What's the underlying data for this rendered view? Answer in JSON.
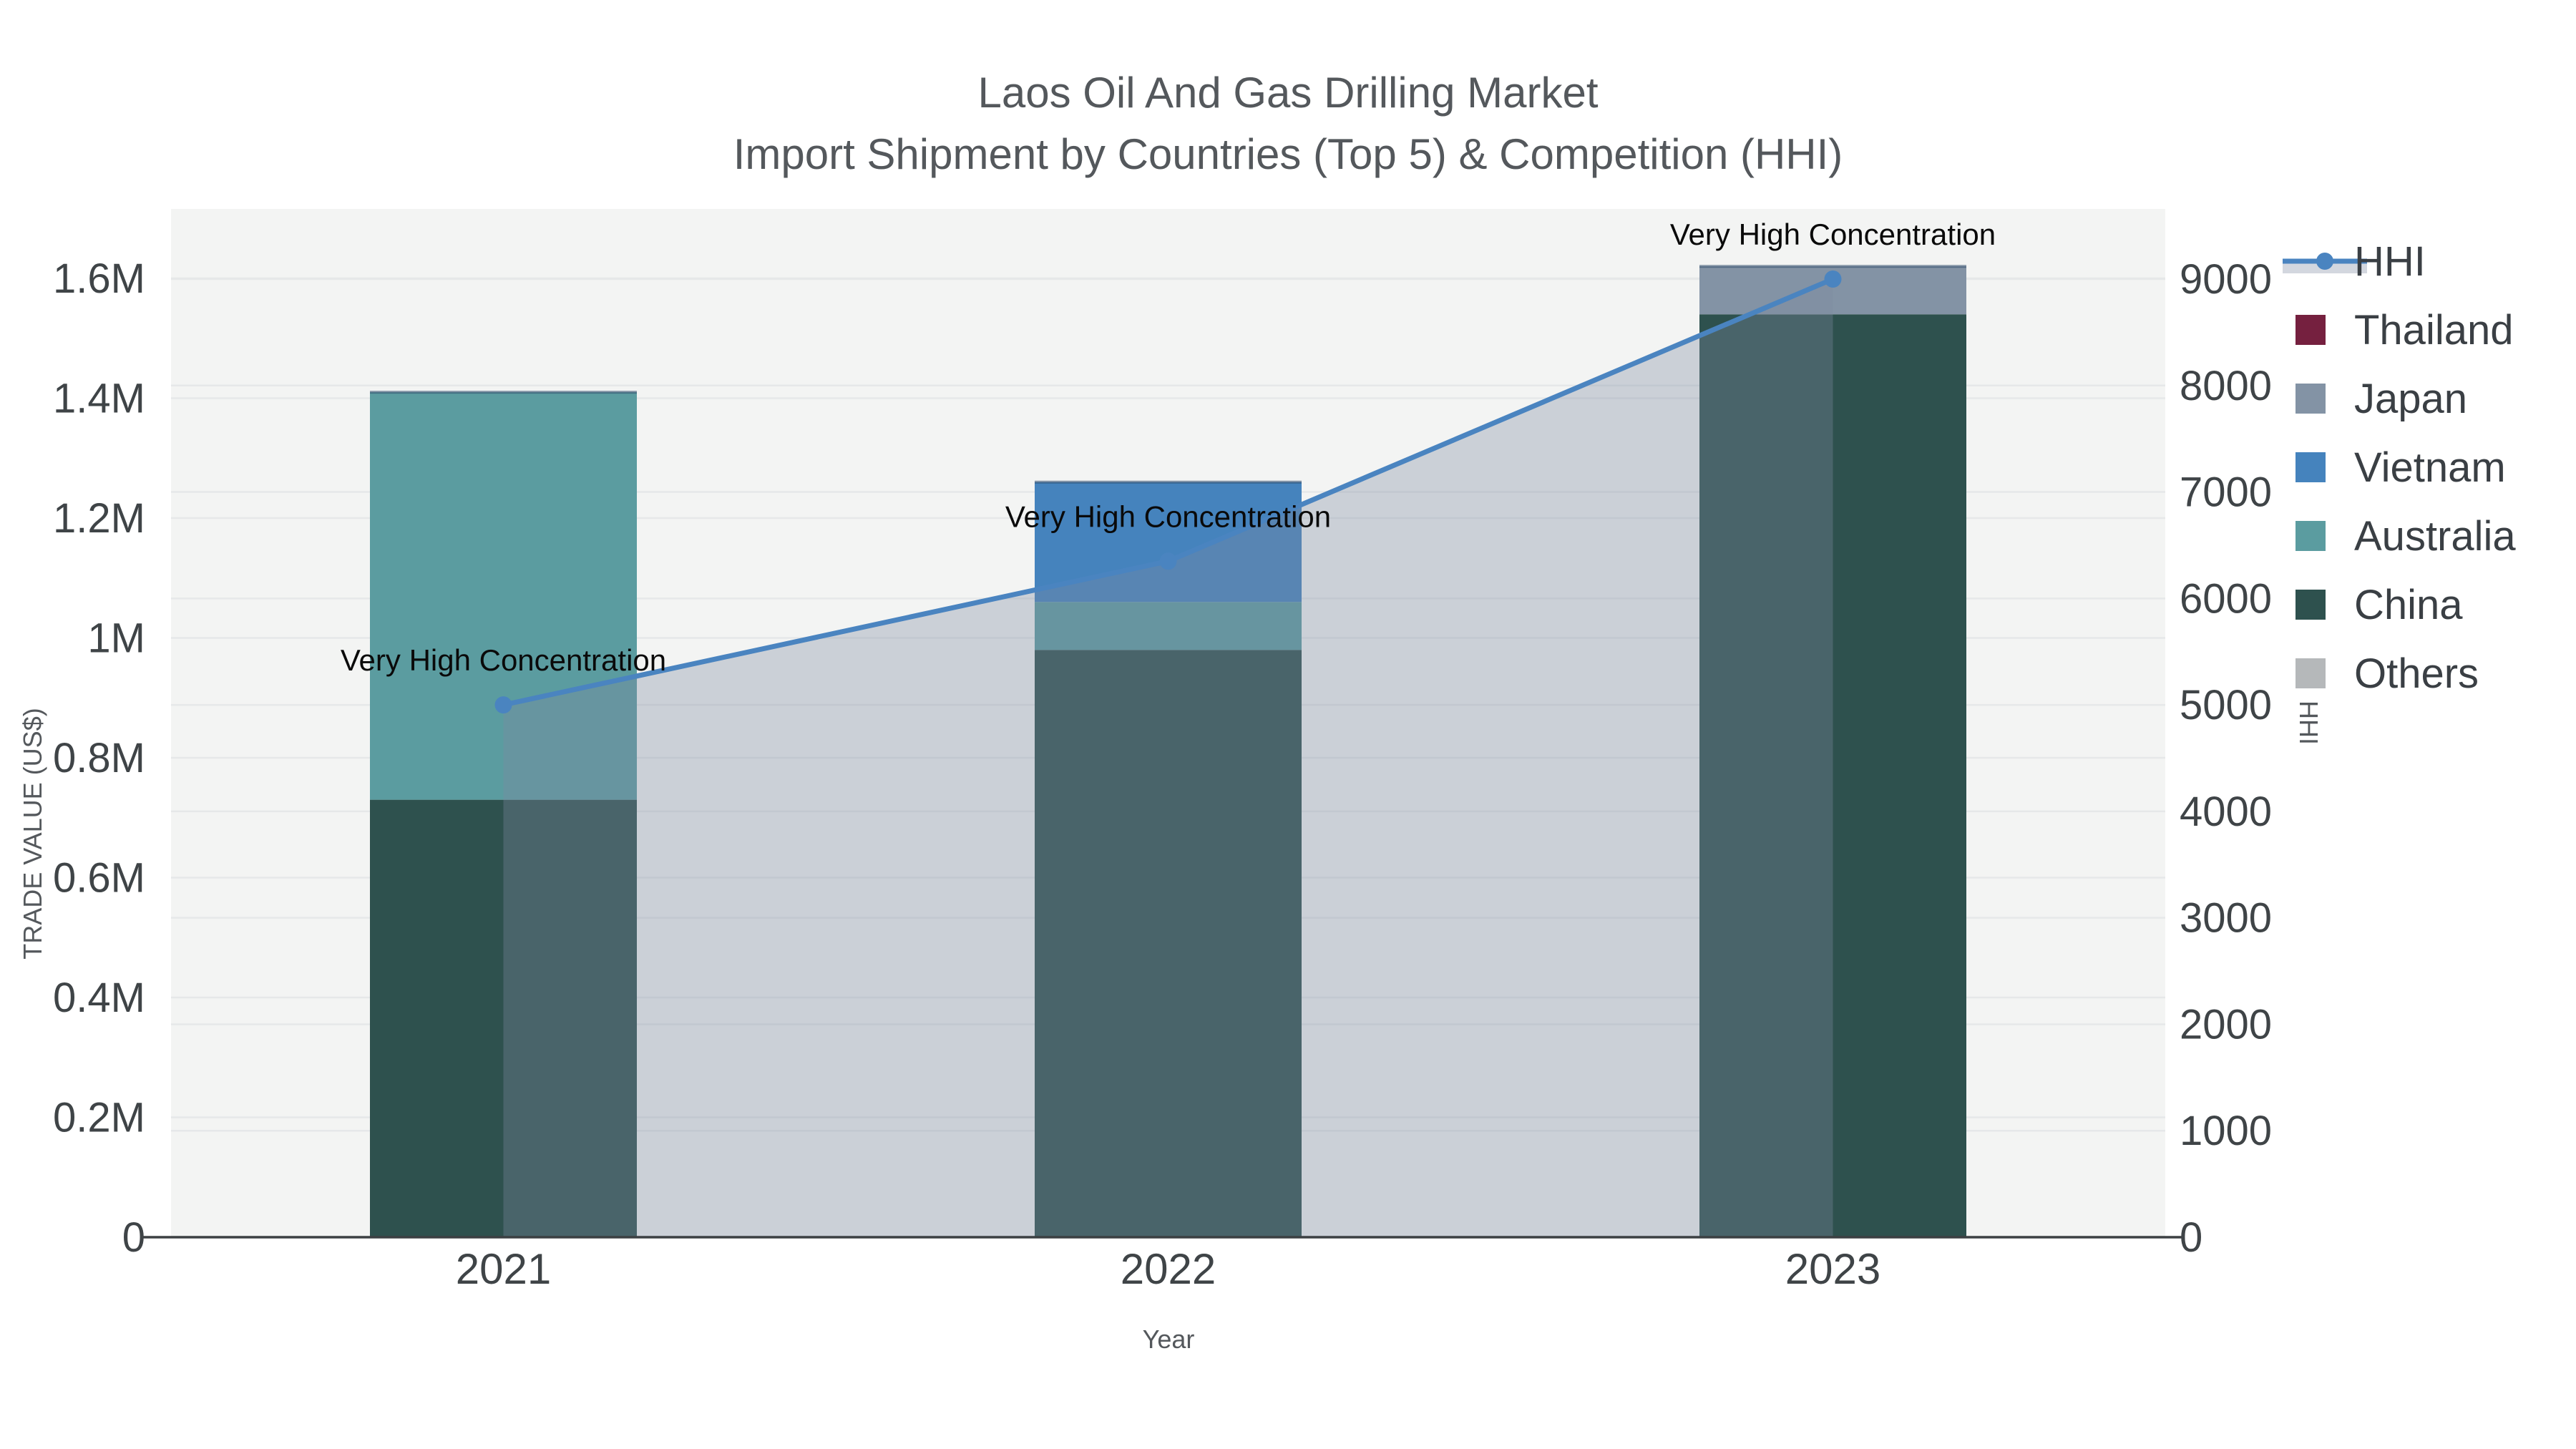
{
  "header": {
    "title": "Laos Oil And Gas Drilling Market",
    "subtitle": "Import Shipment by Countries (Top 5) & Competition (HHI)"
  },
  "chart_data": {
    "type": "bar+line",
    "title": "Laos Oil And Gas Drilling Market",
    "subtitle": "Import Shipment by Countries (Top 5) & Competition (HHI)",
    "categories": [
      "2021",
      "2022",
      "2023"
    ],
    "series": [
      {
        "name": "China",
        "color": "#2e514e",
        "values": [
          730000,
          980000,
          1540000
        ]
      },
      {
        "name": "Australia",
        "color": "#5b9ca0",
        "values": [
          680000,
          80000,
          0
        ]
      },
      {
        "name": "Vietnam",
        "color": "#4583bd",
        "values": [
          0,
          200000,
          0
        ]
      },
      {
        "name": "Japan",
        "color": "#8393a5",
        "values": [
          0,
          0,
          80000
        ]
      },
      {
        "name": "Thailand",
        "color": "#75203f",
        "values": [
          0,
          0,
          0
        ]
      },
      {
        "name": "Others",
        "color": "#b5b8ba",
        "values": [
          0,
          0,
          0
        ]
      }
    ],
    "line_series": {
      "name": "HHI",
      "color": "#4a84c0",
      "area_fill": "rgba(125,138,160,0.34)",
      "values": [
        5000,
        6350,
        9000
      ]
    },
    "annotations": [
      {
        "category": "2021",
        "text": "Very High Concentration"
      },
      {
        "category": "2022",
        "text": "Very High Concentration"
      },
      {
        "category": "2023",
        "text": "Very High Concentration"
      }
    ],
    "x_axis": {
      "label": "Year",
      "tick_labels": [
        "2021",
        "2022",
        "2023"
      ]
    },
    "y_axis_left": {
      "label": "TRADE VALUE (US$)",
      "range": [
        0,
        1600000
      ],
      "tick_step": 200000,
      "tick_labels": [
        "0",
        "0.2M",
        "0.4M",
        "0.6M",
        "0.8M",
        "1M",
        "1.2M",
        "1.4M",
        "1.6M"
      ]
    },
    "y_axis_right": {
      "label": "HHI",
      "range": [
        0,
        9000
      ],
      "tick_step": 1000,
      "tick_labels": [
        "0",
        "1000",
        "2000",
        "3000",
        "4000",
        "5000",
        "6000",
        "7000",
        "8000",
        "9000"
      ]
    },
    "legend": [
      {
        "label": "HHI",
        "type": "line",
        "color": "#4a84c0"
      },
      {
        "label": "Thailand",
        "type": "square",
        "color": "#75203f"
      },
      {
        "label": "Japan",
        "type": "square",
        "color": "#8393a5"
      },
      {
        "label": "Vietnam",
        "type": "square",
        "color": "#4583bd"
      },
      {
        "label": "Australia",
        "type": "square",
        "color": "#5b9ca0"
      },
      {
        "label": "China",
        "type": "square",
        "color": "#2e514e"
      },
      {
        "label": "Others",
        "type": "square",
        "color": "#b5b8ba"
      }
    ],
    "colors": {
      "plot_bg": "#f3f4f3",
      "grid": "#e6e8e9",
      "axis_line": "#3c4043",
      "tick_text": "#3f4447",
      "title_text": "#54585c",
      "annotation_text": "#0a0a0a",
      "legend_band": "#ccd2dc"
    }
  }
}
